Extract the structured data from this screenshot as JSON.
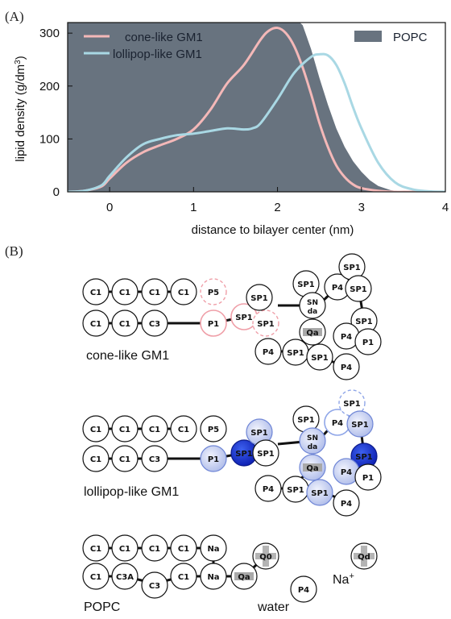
{
  "panel_a_label": "(A)",
  "panel_b_label": "(B)",
  "chart_data": {
    "type": "line",
    "xlabel": "distance to bilayer center (nm)",
    "ylabel_main": "lipid density (g/dm",
    "ylabel_sup": "3",
    "ylabel_end": ")",
    "xlim": [
      -0.5,
      4
    ],
    "ylim": [
      0,
      320
    ],
    "xticks": [
      0,
      1,
      2,
      3,
      4
    ],
    "yticks": [
      0,
      100,
      200,
      300
    ],
    "grid": false,
    "legend_position": "top",
    "area_series": {
      "name": "POPC",
      "color": "#68737f",
      "x": [
        -0.5,
        0.0,
        2.0,
        2.2,
        2.3,
        2.4,
        2.5,
        2.6,
        2.7,
        2.8,
        2.9,
        3.0,
        3.1,
        3.2,
        3.35,
        3.5
      ],
      "y": [
        330,
        330,
        330,
        330,
        315,
        270,
        215,
        165,
        120,
        85,
        58,
        38,
        22,
        11,
        3,
        0
      ]
    },
    "series": [
      {
        "name": "cone-like GM1",
        "color": "#f4b8b8",
        "x": [
          -0.5,
          -0.3,
          -0.1,
          0.0,
          0.2,
          0.4,
          0.6,
          0.8,
          1.0,
          1.2,
          1.4,
          1.6,
          1.8,
          1.9,
          2.0,
          2.1,
          2.2,
          2.3,
          2.4,
          2.5,
          2.6,
          2.7,
          2.8,
          2.9,
          3.0,
          3.2,
          3.4,
          3.6,
          4.0
        ],
        "y": [
          0,
          2,
          10,
          25,
          55,
          75,
          88,
          100,
          118,
          155,
          205,
          240,
          288,
          305,
          310,
          300,
          275,
          235,
          185,
          130,
          85,
          50,
          28,
          14,
          7,
          2,
          0,
          0,
          0
        ]
      },
      {
        "name": "lollipop-like GM1",
        "color": "#a9d8e4",
        "x": [
          -0.5,
          -0.3,
          -0.1,
          0.0,
          0.2,
          0.4,
          0.6,
          0.8,
          1.0,
          1.2,
          1.4,
          1.6,
          1.7,
          1.8,
          2.0,
          2.2,
          2.4,
          2.5,
          2.6,
          2.7,
          2.8,
          2.9,
          3.0,
          3.2,
          3.4,
          3.6,
          3.8,
          4.0
        ],
        "y": [
          0,
          2,
          12,
          30,
          65,
          90,
          100,
          107,
          110,
          115,
          120,
          118,
          120,
          130,
          175,
          225,
          255,
          260,
          258,
          240,
          205,
          160,
          120,
          55,
          18,
          5,
          1,
          0
        ]
      }
    ]
  },
  "panel_b": {
    "cone_label": "cone-like GM1",
    "lollipop_label": "lollipop-like GM1",
    "popc_label": "POPC",
    "water_label": "water",
    "ion_label_main": "Na",
    "ion_label_sup": "+",
    "labels": {
      "C1": "C1",
      "C3": "C3",
      "C3A": "C3A",
      "P1": "P1",
      "P4": "P4",
      "P5": "P5",
      "SP1": "SP1",
      "SN": "SN",
      "da": "da",
      "Qa": "Qa",
      "Q0": "Q0",
      "Qd": "Qd",
      "Na": "Na"
    }
  }
}
